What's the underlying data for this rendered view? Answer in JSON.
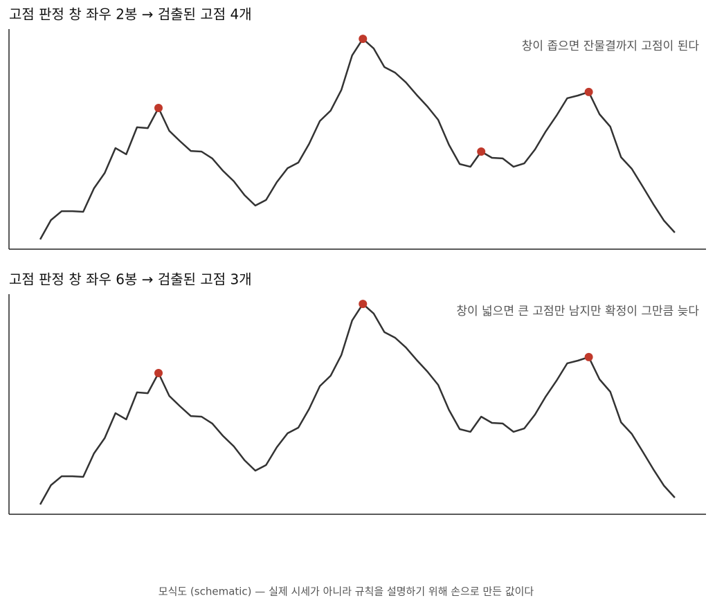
{
  "chart_data": [
    {
      "type": "line",
      "title": "고점 판정 창 좌우 2봉 → 검출된 고점 4개",
      "annotation": "창이 좁으면 잔물결까지 고점이 된다",
      "x": [
        0,
        1,
        2,
        3,
        4,
        5,
        6,
        7,
        8,
        9,
        10,
        11,
        12,
        13,
        14,
        15,
        16,
        17,
        18,
        19,
        20,
        21,
        22,
        23,
        24,
        25,
        26,
        27,
        28,
        29,
        30,
        31,
        32,
        33,
        34,
        35,
        36,
        37,
        38,
        39,
        40,
        41,
        42,
        43,
        44,
        45,
        46,
        47,
        48,
        49,
        50,
        51,
        52,
        53,
        54,
        55,
        56,
        57,
        58,
        59
      ],
      "xlim": [
        -2.9,
        61.9
      ],
      "ylim": [
        0,
        106
      ],
      "series": [
        {
          "color": "#333333",
          "values": [
            4.7,
            14,
            18.3,
            18.3,
            18,
            29.3,
            36.7,
            48.7,
            45.7,
            58.7,
            58.3,
            68,
            57,
            52,
            47.3,
            47,
            43.7,
            37.7,
            32.7,
            26,
            21,
            23.7,
            32.3,
            39,
            41.7,
            50.7,
            61.7,
            66.7,
            76.7,
            93.3,
            101.3,
            96.7,
            87.7,
            85,
            80.3,
            74.3,
            68.7,
            62.3,
            50.3,
            41,
            39.7,
            47,
            44,
            43.7,
            39.7,
            41.3,
            48,
            56.7,
            64.3,
            72.7,
            74,
            75.7,
            65,
            59,
            44.3,
            38.7,
            30.3,
            21.7,
            13.7,
            8
          ]
        }
      ],
      "peaks": [
        11,
        30,
        41,
        51
      ],
      "peak_color": "#c0392b"
    },
    {
      "type": "line",
      "title": "고점 판정 창 좌우 6봉 → 검출된 고점 3개",
      "annotation": "창이 넓으면 큰 고점만 남지만 확정이 그만큼 늦다",
      "x": [
        0,
        1,
        2,
        3,
        4,
        5,
        6,
        7,
        8,
        9,
        10,
        11,
        12,
        13,
        14,
        15,
        16,
        17,
        18,
        19,
        20,
        21,
        22,
        23,
        24,
        25,
        26,
        27,
        28,
        29,
        30,
        31,
        32,
        33,
        34,
        35,
        36,
        37,
        38,
        39,
        40,
        41,
        42,
        43,
        44,
        45,
        46,
        47,
        48,
        49,
        50,
        51,
        52,
        53,
        54,
        55,
        56,
        57,
        58,
        59
      ],
      "xlim": [
        -2.9,
        61.9
      ],
      "ylim": [
        0,
        106
      ],
      "series": [
        {
          "color": "#333333",
          "values": [
            4.7,
            14,
            18.3,
            18.3,
            18,
            29.3,
            36.7,
            48.7,
            45.7,
            58.7,
            58.3,
            68,
            57,
            52,
            47.3,
            47,
            43.7,
            37.7,
            32.7,
            26,
            21,
            23.7,
            32.3,
            39,
            41.7,
            50.7,
            61.7,
            66.7,
            76.7,
            93.3,
            101.3,
            96.7,
            87.7,
            85,
            80.3,
            74.3,
            68.7,
            62.3,
            50.3,
            41,
            39.7,
            47,
            44,
            43.7,
            39.7,
            41.3,
            48,
            56.7,
            64.3,
            72.7,
            74,
            75.7,
            65,
            59,
            44.3,
            38.7,
            30.3,
            21.7,
            13.7,
            8
          ]
        }
      ],
      "peaks": [
        11,
        30,
        51
      ],
      "peak_color": "#c0392b"
    }
  ],
  "note": "모식도 (schematic) — 실제 시세가 아니라 규칙을 설명하기 위해 손으로 만든 값이다"
}
